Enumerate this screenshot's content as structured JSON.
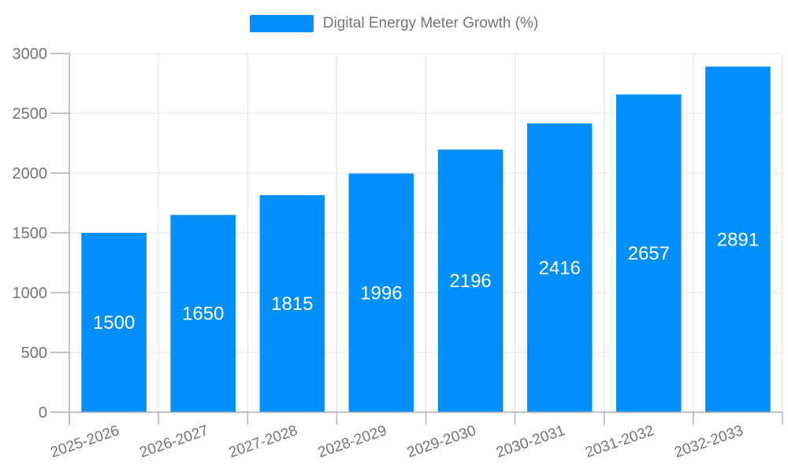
{
  "legend": {
    "position": "top",
    "series": [
      {
        "label": "Digital Energy Meter Growth (%)",
        "color": "#008FFB"
      }
    ]
  },
  "colors": {
    "bar": "#008FFB",
    "grid": "#e0e0e0",
    "axis": "#b0b0b0",
    "tick_label": "#757575",
    "value_label": "#ffffff",
    "background": "#ffffff"
  },
  "chart_data": {
    "type": "bar",
    "title": "",
    "series_name": "Digital Energy Meter Growth (%)",
    "categories": [
      "2025-2026",
      "2026-2027",
      "2027-2028",
      "2028-2029",
      "2029-2030",
      "2030-2031",
      "2031-2032",
      "2032-2033"
    ],
    "values": [
      1500,
      1650,
      1815,
      1996,
      2196,
      2416,
      2657,
      2891
    ],
    "xlabel": "",
    "ylabel": "",
    "ylim": [
      0,
      3000
    ],
    "yticks": [
      0,
      500,
      1000,
      1500,
      2000,
      2500,
      3000
    ],
    "grid": true,
    "legend_position": "top",
    "value_labels": "inside-center",
    "x_label_rotation_deg": -19
  }
}
